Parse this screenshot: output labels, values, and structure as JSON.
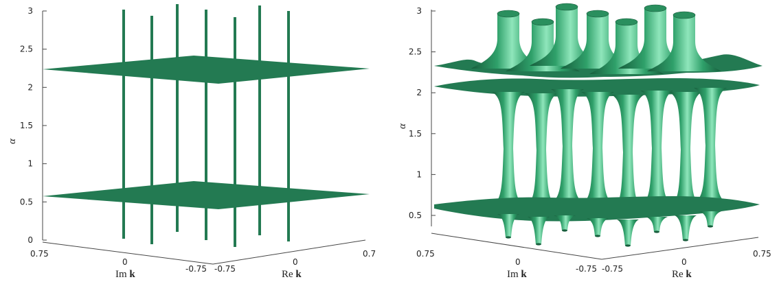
{
  "colors": {
    "surface": "#237a52",
    "surface_light": "#2fa06a",
    "surface_dark": "#175d3c",
    "highlight": "#7fe0b0",
    "axis": "#444444"
  },
  "chart_data": [
    {
      "type": "surface3d",
      "panel": "left",
      "zlabel": "α",
      "xlabel": "Im k",
      "ylabel": "Re k",
      "zlim": [
        0,
        3
      ],
      "zticks": [
        "0",
        "0.5",
        "1",
        "1.5",
        "2",
        "2.5",
        "3"
      ],
      "im_ticks": [
        "0.75",
        "0",
        "-0.75"
      ],
      "re_ticks": [
        "-0.75",
        "0",
        "0.7"
      ],
      "planes_alpha": [
        0.6,
        2.2
      ],
      "tubes": [
        {
          "x": -0.45,
          "y": -0.55
        },
        {
          "x": -0.15,
          "y": -0.35
        },
        {
          "x": 0.15,
          "y": -0.15
        },
        {
          "x": 0.45,
          "y": 0.05
        },
        {
          "x": -0.55,
          "y": 0.25
        },
        {
          "x": -0.25,
          "y": 0.45
        },
        {
          "x": 0.05,
          "y": 0.65
        }
      ]
    },
    {
      "type": "surface3d",
      "panel": "right",
      "zlabel": "α",
      "xlabel": "Im k",
      "ylabel": "Re k",
      "zlim": [
        0.3,
        3
      ],
      "zticks": [
        "0.5",
        "1",
        "1.5",
        "2",
        "2.5",
        "3"
      ],
      "im_ticks": [
        "0.75",
        "0",
        "-0.75"
      ],
      "re_ticks": [
        "-0.75",
        "0",
        "0.75"
      ],
      "sheets_alpha": [
        0.6,
        2.15
      ],
      "upper_sheet_alpha": 2.35
    }
  ]
}
